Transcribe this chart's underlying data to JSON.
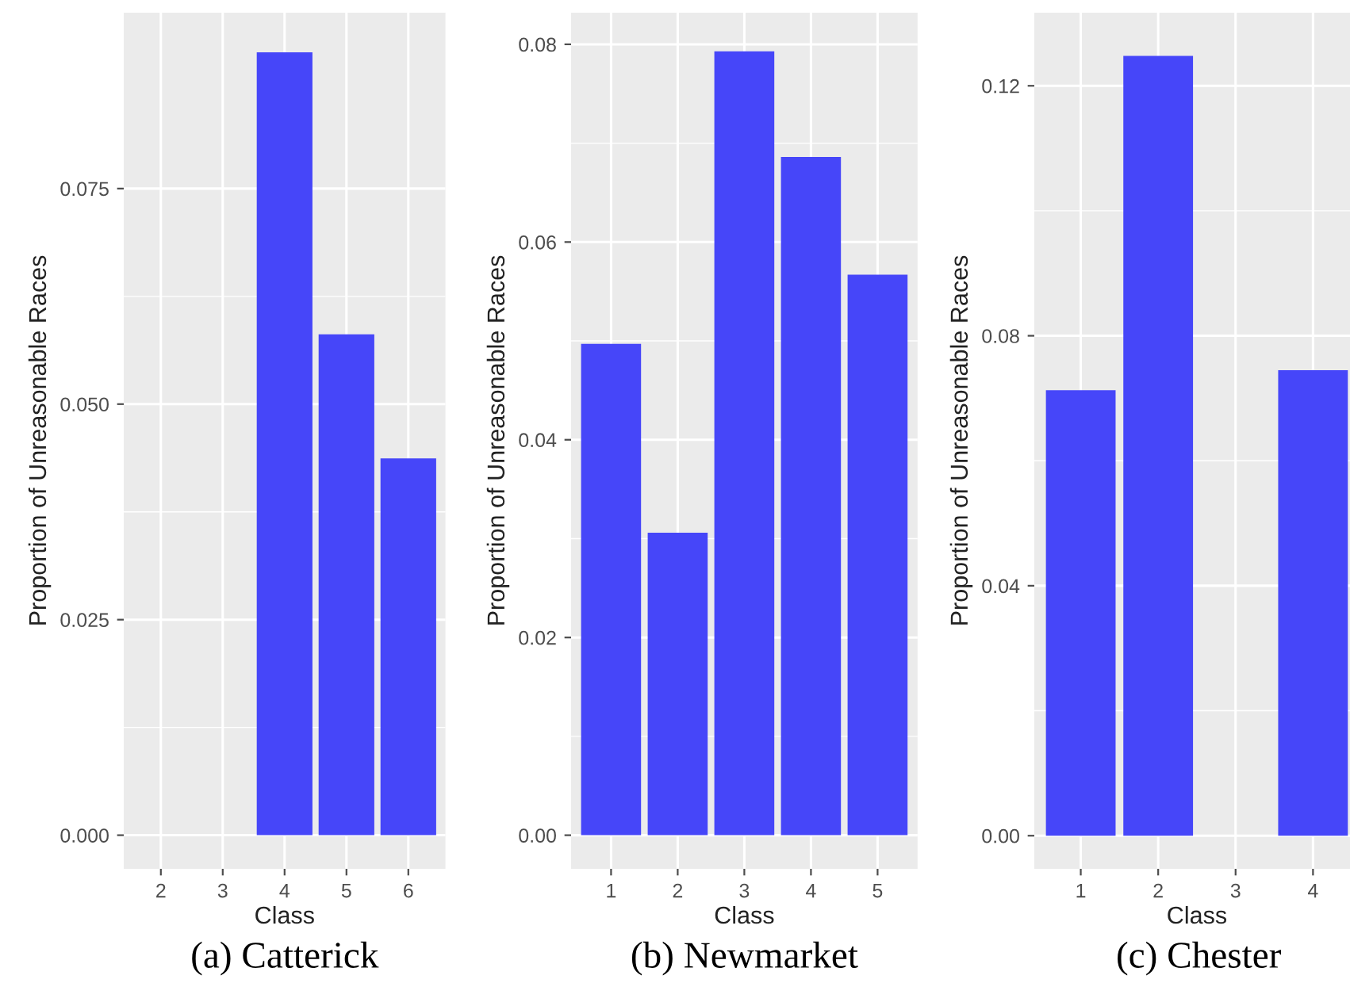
{
  "chart_data": [
    {
      "type": "bar",
      "xlabel": "Class",
      "ylabel": "Proportion of Unreasonable Races",
      "categories": [
        "2",
        "3",
        "4",
        "5",
        "6"
      ],
      "values": [
        0,
        0,
        0.0908,
        0.0581,
        0.0437
      ],
      "color": "#4646f9",
      "ylim": [
        -0.0039,
        0.0954
      ],
      "yticks": [
        {
          "value": 0,
          "label": "0.000"
        },
        {
          "value": 0.025,
          "label": "0.025"
        },
        {
          "value": 0.05,
          "label": "0.050"
        },
        {
          "value": 0.075,
          "label": "0.075"
        }
      ],
      "grid": true,
      "annotations": [
        "(a) Catterick"
      ]
    },
    {
      "type": "bar",
      "xlabel": "Class",
      "ylabel": "Proportion of Unreasonable Races",
      "categories": [
        "1",
        "2",
        "3",
        "4",
        "5"
      ],
      "values": [
        0.0497,
        0.0306,
        0.0793,
        0.0686,
        0.0567
      ],
      "color": "#4646f9",
      "ylim": [
        -0.0034,
        0.0832
      ],
      "yticks": [
        {
          "value": 0,
          "label": "0.00"
        },
        {
          "value": 0.02,
          "label": "0.02"
        },
        {
          "value": 0.04,
          "label": "0.04"
        },
        {
          "value": 0.06,
          "label": "0.06"
        },
        {
          "value": 0.08,
          "label": "0.08"
        }
      ],
      "grid": true,
      "annotations": [
        "(b) Newmarket"
      ]
    },
    {
      "type": "bar",
      "xlabel": "Class",
      "ylabel": "Proportion of Unreasonable Races",
      "categories": [
        "1",
        "2",
        "3",
        "4"
      ],
      "values": [
        0.0713,
        0.1248,
        0,
        0.0745
      ],
      "color": "#4646f9",
      "ylim": [
        -0.0053,
        0.1317
      ],
      "yticks": [
        {
          "value": 0,
          "label": "0.00"
        },
        {
          "value": 0.04,
          "label": "0.04"
        },
        {
          "value": 0.08,
          "label": "0.08"
        },
        {
          "value": 0.12,
          "label": "0.12"
        }
      ],
      "grid": true,
      "annotations": [
        "(c) Chester"
      ]
    }
  ]
}
